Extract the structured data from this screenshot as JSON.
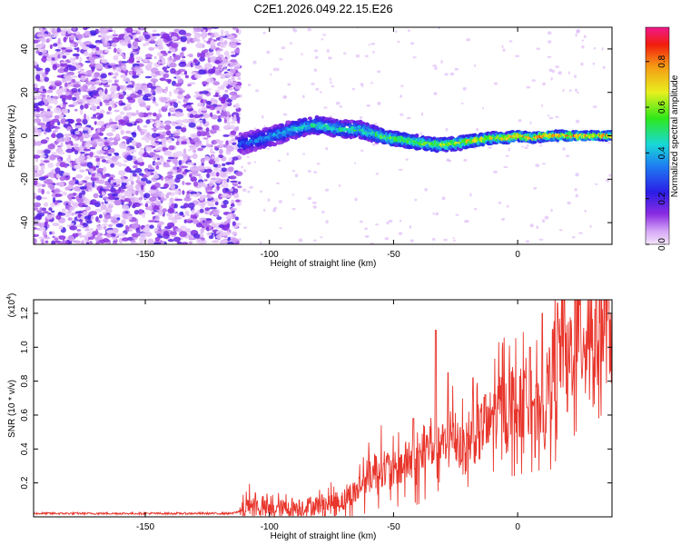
{
  "chart_data": [
    {
      "type": "heatmap",
      "title": "C2E1.2026.049.22.15.E26",
      "xlabel": "Height of straight line (km)",
      "ylabel": "Frequency (Hz)",
      "xlim": [
        -195,
        38
      ],
      "ylim": [
        -50,
        50
      ],
      "x_ticks": [
        -150,
        -100,
        -50,
        0
      ],
      "x_tick_labels": [
        "-150",
        "-100",
        "-50",
        "0"
      ],
      "y_ticks": [
        -40,
        -20,
        0,
        20,
        40
      ],
      "y_tick_labels": [
        "-40",
        "-20",
        "0",
        "20",
        "40"
      ],
      "noise_region_x": [
        -195,
        -112
      ],
      "ridge": {
        "x": [
          -112,
          -105,
          -98,
          -90,
          -82,
          -76,
          -70,
          -64,
          -58,
          -52,
          -46,
          -40,
          -34,
          -28,
          -22,
          -16,
          -10,
          -4,
          0,
          6,
          12,
          18,
          24,
          30,
          38
        ],
        "freq": [
          -4,
          -2,
          0,
          3,
          5,
          4,
          3,
          3,
          1,
          -1,
          -2,
          -3,
          -4,
          -4,
          -3,
          -2,
          -1,
          -1,
          0,
          -1,
          0,
          0,
          0,
          0,
          0
        ],
        "amplitude": [
          0.35,
          0.4,
          0.45,
          0.5,
          0.55,
          0.55,
          0.55,
          0.55,
          0.6,
          0.65,
          0.7,
          0.7,
          0.75,
          0.75,
          0.75,
          0.8,
          0.85,
          0.85,
          0.9,
          0.9,
          0.9,
          0.9,
          0.95,
          0.95,
          0.95
        ]
      },
      "colorbar": {
        "label": "Normalized spectral amplitude",
        "range": [
          0,
          0.95
        ],
        "ticks": [
          0,
          0.2,
          0.4,
          0.6,
          0.8
        ],
        "tick_labels": [
          "0.0",
          "0.2",
          "0.4",
          "0.6",
          "0.8"
        ]
      }
    },
    {
      "type": "line",
      "title": "",
      "xlabel": "Height of straight line (km)",
      "ylabel": "SNR (10 * v/v)",
      "scale_label": "(x10",
      "scale_exp": "4",
      "xlim": [
        -195,
        38
      ],
      "ylim": [
        0,
        1.28
      ],
      "x_ticks": [
        -150,
        -100,
        -50,
        0
      ],
      "x_tick_labels": [
        "-150",
        "-100",
        "-50",
        "0"
      ],
      "y_ticks": [
        0.2,
        0.4,
        0.6,
        0.8,
        1.0,
        1.2
      ],
      "y_tick_labels": [
        "0.2",
        "0.4",
        "0.6",
        "0.8",
        "1.0",
        "1.2"
      ],
      "series": [
        {
          "name": "SNR",
          "color": "#e8352b",
          "x": [
            -195,
            -185,
            -175,
            -165,
            -155,
            -145,
            -135,
            -125,
            -115,
            -110,
            -108,
            -105,
            -100,
            -95,
            -90,
            -85,
            -80,
            -75,
            -70,
            -65,
            -62,
            -58,
            -55,
            -52,
            -50,
            -47,
            -44,
            -41,
            -38,
            -35,
            -32,
            -30,
            -28,
            -26,
            -24,
            -22,
            -20,
            -18,
            -16,
            -14,
            -12,
            -10,
            -8,
            -6,
            -4,
            -2,
            0,
            2,
            4,
            6,
            8,
            10,
            12,
            14,
            16,
            18,
            20,
            22,
            24,
            26,
            28,
            30,
            32,
            34,
            36,
            38
          ],
          "values": [
            0.02,
            0.02,
            0.02,
            0.02,
            0.02,
            0.02,
            0.02,
            0.02,
            0.02,
            0.04,
            0.08,
            0.06,
            0.04,
            0.05,
            0.05,
            0.06,
            0.07,
            0.08,
            0.1,
            0.15,
            0.22,
            0.26,
            0.3,
            0.28,
            0.26,
            0.3,
            0.33,
            0.3,
            0.35,
            0.45,
            0.38,
            0.42,
            0.4,
            0.5,
            0.45,
            0.4,
            0.42,
            0.5,
            0.45,
            0.55,
            0.5,
            0.62,
            0.6,
            0.68,
            0.62,
            0.7,
            0.62,
            0.68,
            0.72,
            0.75,
            0.6,
            0.5,
            0.75,
            0.85,
            0.9,
            1.05,
            0.95,
            1.0,
            1.1,
            1.05,
            1.15,
            1.1,
            1.08,
            1.12,
            1.14,
            1.1
          ],
          "spikes": [
            {
              "x": -42,
              "value": 0.58
            },
            {
              "x": -33,
              "value": 1.1
            },
            {
              "x": -28,
              "value": 0.85
            },
            {
              "x": -18,
              "value": 0.82
            },
            {
              "x": -13,
              "value": 0.72
            },
            {
              "x": 3,
              "value": 0.82
            },
            {
              "x": 5,
              "value": 1.0
            },
            {
              "x": 10,
              "value": 1.2
            },
            {
              "x": 16,
              "value": 1.26
            },
            {
              "x": 25,
              "value": 1.25
            },
            {
              "x": 20,
              "value": 0.62
            },
            {
              "x": 7,
              "value": 0.35
            }
          ]
        }
      ]
    }
  ]
}
